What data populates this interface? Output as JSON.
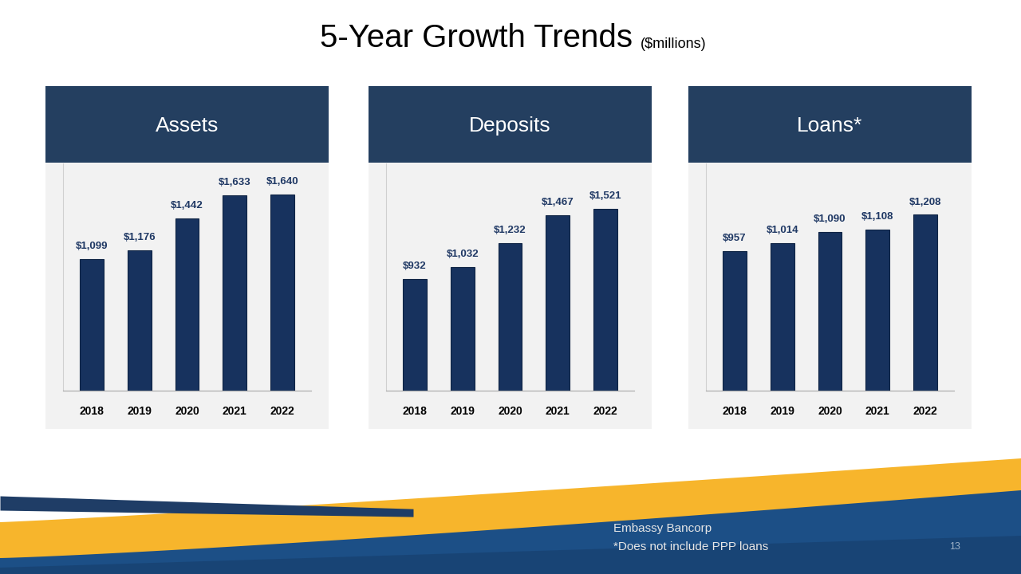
{
  "title": "5-Year Growth Trends",
  "subtitle": "($millions)",
  "chart_data": [
    {
      "type": "bar",
      "title": "Assets",
      "categories": [
        "2018",
        "2019",
        "2020",
        "2021",
        "2022"
      ],
      "values": [
        1099,
        1176,
        1442,
        1633,
        1640
      ],
      "value_labels": [
        "$1,099",
        "$1,176",
        "$1,442",
        "$1,633",
        "$1,640"
      ],
      "data_labels": true,
      "tick_labels": "x",
      "color": "#17325e",
      "ylim": [
        0,
        1900
      ]
    },
    {
      "type": "bar",
      "title": "Deposits",
      "categories": [
        "2018",
        "2019",
        "2020",
        "2021",
        "2022"
      ],
      "values": [
        932,
        1032,
        1232,
        1467,
        1521
      ],
      "value_labels": [
        "$932",
        "$1,032",
        "$1,232",
        "$1,467",
        "$1,521"
      ],
      "data_labels": true,
      "tick_labels": "x",
      "color": "#17325e",
      "ylim": [
        0,
        1900
      ]
    },
    {
      "type": "bar",
      "title": "Loans*",
      "categories": [
        "2018",
        "2019",
        "2020",
        "2021",
        "2022"
      ],
      "values": [
        957,
        1014,
        1090,
        1108,
        1208
      ],
      "value_labels": [
        "$957",
        "$1,014",
        "$1,090",
        "$1,108",
        "$1,208"
      ],
      "data_labels": true,
      "tick_labels": "x",
      "color": "#17325e",
      "ylim": [
        0,
        1560
      ]
    }
  ],
  "footer": {
    "company": "Embassy Bancorp",
    "note": "*Does not include PPP loans",
    "page": 13
  }
}
